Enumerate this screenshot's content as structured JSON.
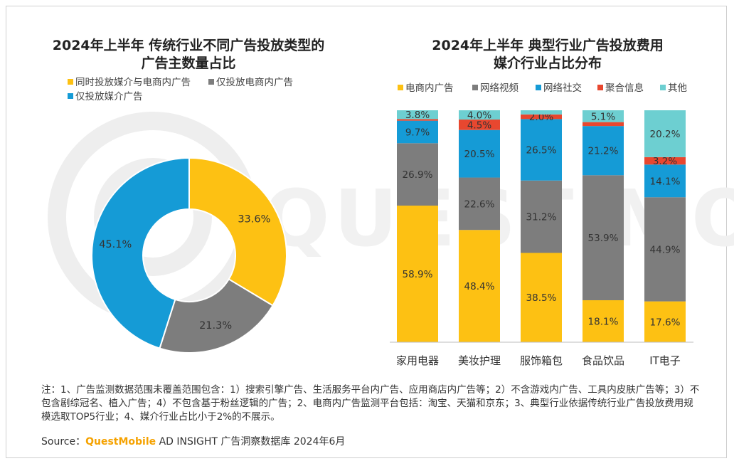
{
  "left_chart": {
    "title_line1": "2024年上半年 传统行业不同广告投放类型的",
    "title_line2": "广告主数量占比",
    "legend": [
      {
        "label": "同时投放媒介与电商内广告",
        "color": "#fdc113"
      },
      {
        "label": "仅投放电商内广告",
        "color": "#7d7d7d"
      },
      {
        "label": "仅投放媒介广告",
        "color": "#159bd6"
      }
    ]
  },
  "right_chart": {
    "title_line1": "2024年上半年 典型行业广告投放费用",
    "title_line2": "媒介行业占比分布",
    "legend": [
      {
        "label": "电商内广告",
        "color": "#fdc113"
      },
      {
        "label": "网络视频",
        "color": "#7d7d7d"
      },
      {
        "label": "网络社交",
        "color": "#159bd6"
      },
      {
        "label": "聚合信息",
        "color": "#e8472f"
      },
      {
        "label": "其他",
        "color": "#6dcfd1"
      }
    ]
  },
  "chart_data": [
    {
      "type": "pie",
      "title": "2024年上半年 传统行业不同广告投放类型的广告主数量占比",
      "categories": [
        "同时投放媒介与电商内广告",
        "仅投放电商内广告",
        "仅投放媒介广告"
      ],
      "values": [
        33.6,
        21.3,
        45.1
      ],
      "labels": [
        "33.6%",
        "21.3%",
        "45.1%"
      ],
      "colors": [
        "#fdc113",
        "#7d7d7d",
        "#159bd6"
      ],
      "donut": true,
      "legend_position": "top"
    },
    {
      "type": "bar",
      "stacked": true,
      "title": "2024年上半年 典型行业广告投放费用媒介行业占比分布",
      "categories": [
        "家用电器",
        "美妆护理",
        "服饰箱包",
        "食品饮品",
        "IT电子"
      ],
      "ylim": [
        0,
        100
      ],
      "legend_position": "top",
      "series": [
        {
          "name": "电商内广告",
          "color": "#fdc113",
          "values": [
            58.9,
            48.4,
            38.5,
            18.1,
            17.6
          ],
          "labels": [
            "58.9%",
            "48.4%",
            "38.5%",
            "18.1%",
            "17.6%"
          ]
        },
        {
          "name": "网络视频",
          "color": "#7d7d7d",
          "values": [
            26.9,
            22.6,
            31.2,
            53.9,
            44.9
          ],
          "labels": [
            "26.9%",
            "22.6%",
            "31.2%",
            "53.9%",
            "44.9%"
          ]
        },
        {
          "name": "网络社交",
          "color": "#159bd6",
          "values": [
            9.7,
            20.5,
            26.5,
            21.2,
            14.1
          ],
          "labels": [
            "9.7%",
            "20.5%",
            "26.5%",
            "21.2%",
            "14.1%"
          ]
        },
        {
          "name": "聚合信息",
          "color": "#e8472f",
          "values": [
            0.7,
            4.5,
            2.0,
            1.7,
            3.2
          ],
          "labels": [
            "",
            "4.5%",
            "2.0%",
            "",
            "3.2%"
          ]
        },
        {
          "name": "其他",
          "color": "#6dcfd1",
          "values": [
            3.8,
            4.0,
            1.8,
            5.1,
            20.2
          ],
          "labels": [
            "3.8%",
            "4.0%",
            "",
            "5.1%",
            "20.2%"
          ]
        }
      ]
    }
  ],
  "footer": {
    "note": "注：1、广告监测数据范围未覆盖范围包含：1）搜索引擎广告、生活服务平台内广告、应用商店内广告等；2）不含游戏内广告、工具内皮肤广告等；3）不包含剧综冠名、植入广告；4）不包含基于粉丝逻辑的广告；2、电商内广告监测平台包括：淘宝、天猫和京东；3、典型行业依据传统行业广告投放费用规模选取TOP5行业；4、媒介行业占比小于2%的不展示。",
    "source_prefix": "Source：",
    "source_brand": "QuestMobile",
    "source_rest": " AD INSIGHT 广告洞察数据库 2024年6月"
  }
}
